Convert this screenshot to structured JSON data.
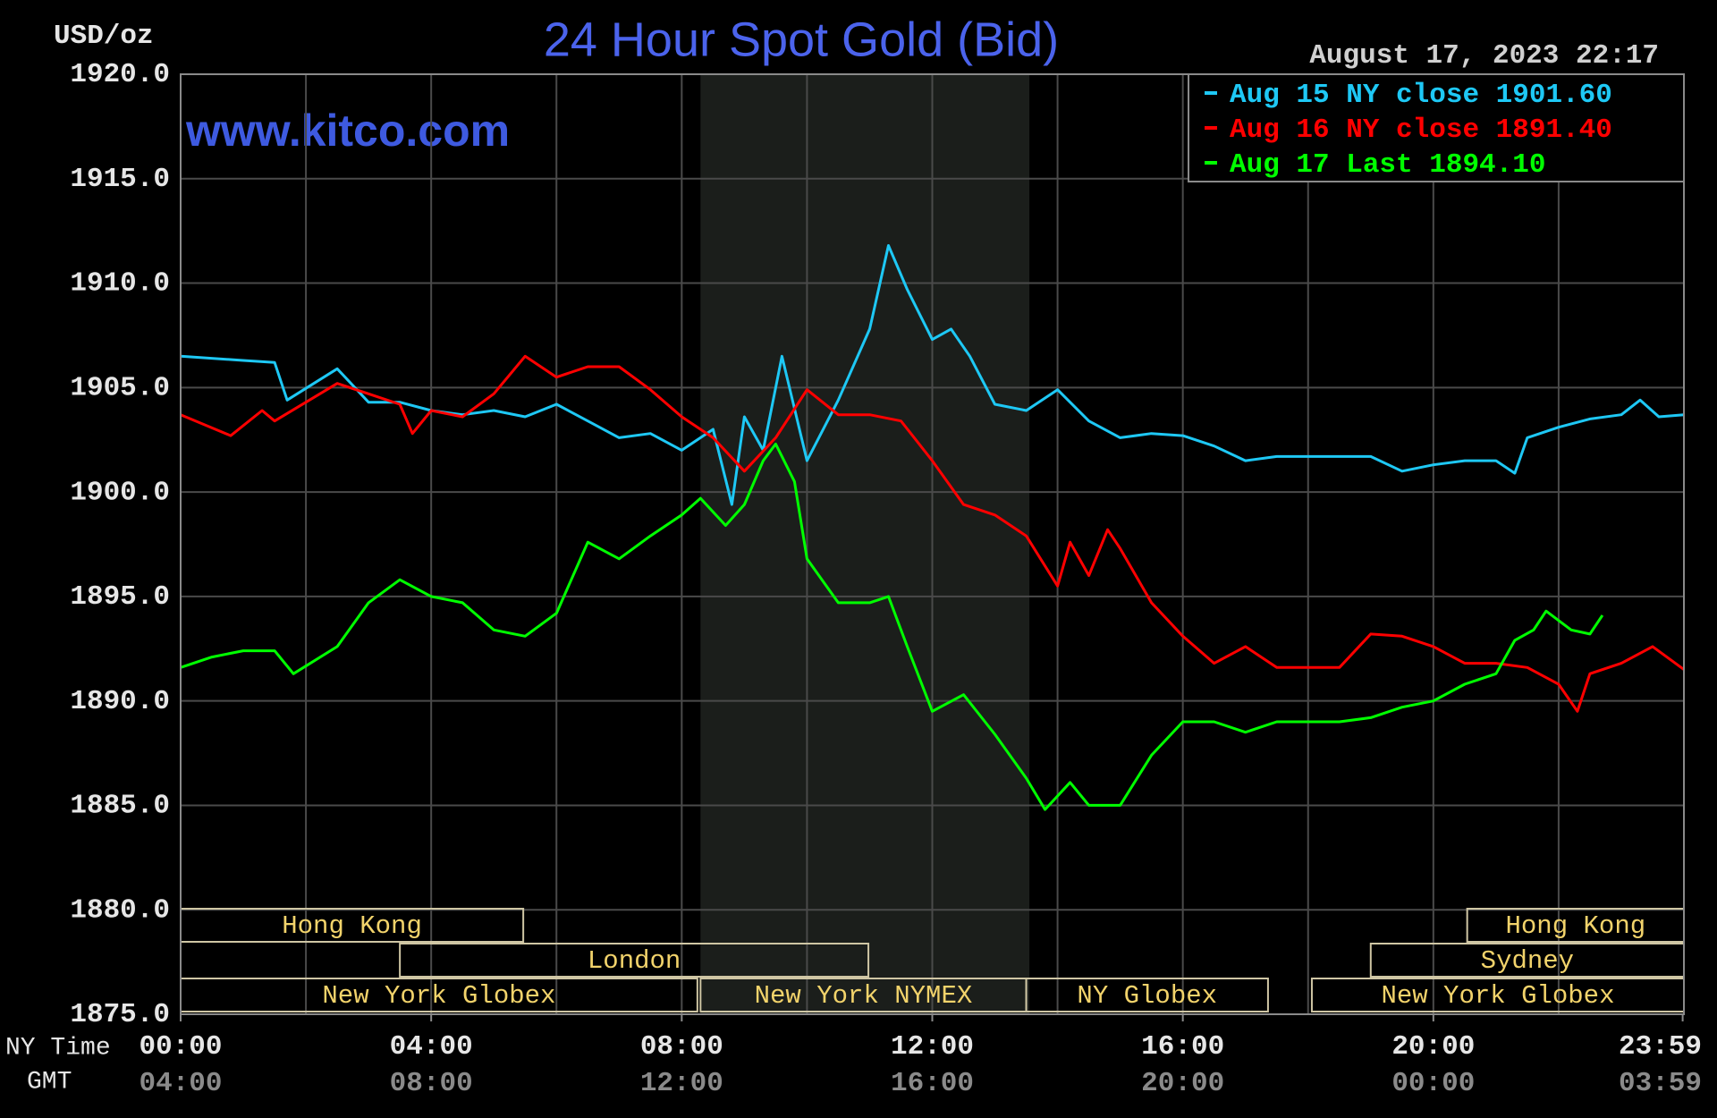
{
  "chart_data": {
    "type": "line",
    "title": "24 Hour Spot Gold (Bid)",
    "y_label": "USD/oz",
    "timestamp": "August 17, 2023 22:17",
    "watermark": "www.kitco.com",
    "x_label": "NY Time",
    "x2_label": "GMT",
    "xlim": [
      0,
      24
    ],
    "ylim": [
      1875,
      1920
    ],
    "yticks": [
      {
        "value": 1875,
        "label": "1875.0"
      },
      {
        "value": 1880,
        "label": "1880.0"
      },
      {
        "value": 1885,
        "label": "1885.0"
      },
      {
        "value": 1890,
        "label": "1890.0"
      },
      {
        "value": 1895,
        "label": "1895.0"
      },
      {
        "value": 1900,
        "label": "1900.0"
      },
      {
        "value": 1905,
        "label": "1905.0"
      },
      {
        "value": 1910,
        "label": "1910.0"
      },
      {
        "value": 1915,
        "label": "1915.0"
      },
      {
        "value": 1920,
        "label": "1920.0"
      }
    ],
    "xticks": [
      {
        "value": 0,
        "label": "00:00"
      },
      {
        "value": 4,
        "label": "04:00"
      },
      {
        "value": 8,
        "label": "08:00"
      },
      {
        "value": 12,
        "label": "12:00"
      },
      {
        "value": 16,
        "label": "16:00"
      },
      {
        "value": 20,
        "label": "20:00"
      },
      {
        "value": 23.98,
        "label": "23:59"
      }
    ],
    "x2ticks": [
      "04:00",
      "08:00",
      "12:00",
      "16:00",
      "20:00",
      "00:00",
      "03:59"
    ],
    "xgrid": [
      2,
      4,
      6,
      8,
      10,
      12,
      14,
      16,
      18,
      20,
      22
    ],
    "grid": true,
    "legend": "top-right",
    "highlight": {
      "start": 8.3,
      "end": 13.55,
      "color": "#1b1e1b"
    },
    "sessions": [
      {
        "label": "Hong Kong",
        "start": 0,
        "end": 5.47,
        "row": 0
      },
      {
        "label": "Hong Kong",
        "start": 20.54,
        "end": 24,
        "row": 0
      },
      {
        "label": "London",
        "start": 3.5,
        "end": 10.98,
        "row": 1
      },
      {
        "label": "Sydney",
        "start": 19,
        "end": 24,
        "row": 1
      },
      {
        "label": "New York Globex",
        "start": 0,
        "end": 8.25,
        "row": 2
      },
      {
        "label": "New York NYMEX",
        "start": 8.3,
        "end": 13.5,
        "row": 2
      },
      {
        "label": "NY Globex",
        "start": 13.5,
        "end": 17.36,
        "row": 2
      },
      {
        "label": "New York Globex",
        "start": 18.06,
        "end": 24,
        "row": 2
      }
    ],
    "series": [
      {
        "name": "Aug 15 NY close 1901.60",
        "color": "#1ec8f5",
        "x": [
          0,
          1,
          1.5,
          1.7,
          2.5,
          3,
          3.5,
          4,
          4.5,
          5,
          5.5,
          6,
          6.5,
          7,
          7.5,
          8,
          8.5,
          8.8,
          9,
          9.3,
          9.6,
          10,
          10.5,
          11,
          11.3,
          11.6,
          12,
          12.3,
          12.6,
          13,
          13.5,
          14,
          14.5,
          15,
          15.5,
          16,
          16.5,
          17,
          17.5,
          18,
          18.5,
          19,
          19.5,
          20,
          20.5,
          21,
          21.3,
          21.5,
          22,
          22.5,
          23,
          23.3,
          23.6,
          24
        ],
        "values": [
          1906.5,
          1906.3,
          1906.2,
          1904.4,
          1905.9,
          1904.3,
          1904.3,
          1903.9,
          1903.7,
          1903.9,
          1903.6,
          1904.2,
          1903.4,
          1902.6,
          1902.8,
          1902.0,
          1903.0,
          1899.4,
          1903.6,
          1902.0,
          1906.5,
          1901.5,
          1904.4,
          1907.8,
          1911.8,
          1909.7,
          1907.3,
          1907.8,
          1906.5,
          1904.2,
          1903.9,
          1904.9,
          1903.4,
          1902.6,
          1902.8,
          1902.7,
          1902.2,
          1901.5,
          1901.7,
          1901.7,
          1901.7,
          1901.7,
          1901.0,
          1901.3,
          1901.5,
          1901.5,
          1900.9,
          1902.6,
          1903.1,
          1903.5,
          1903.7,
          1904.4,
          1903.6,
          1903.7
        ]
      },
      {
        "name": "Aug 16 NY close 1891.40",
        "color": "#ff0000",
        "x": [
          0,
          0.8,
          1.3,
          1.5,
          2,
          2.5,
          3,
          3.5,
          3.7,
          4,
          4.5,
          5,
          5.5,
          6,
          6.5,
          7,
          7.5,
          8,
          8.5,
          9,
          9.5,
          10,
          10.5,
          11,
          11.5,
          12,
          12.5,
          13,
          13.5,
          14,
          14.2,
          14.5,
          14.8,
          15,
          15.5,
          16,
          16.5,
          17,
          17.5,
          18,
          18.5,
          19,
          19.5,
          20,
          20.5,
          21,
          21.5,
          22,
          22.3,
          22.5,
          23,
          23.5,
          24
        ],
        "values": [
          1903.7,
          1902.7,
          1903.9,
          1903.4,
          1904.3,
          1905.2,
          1904.7,
          1904.2,
          1902.8,
          1903.9,
          1903.6,
          1904.7,
          1906.5,
          1905.5,
          1906.0,
          1906.0,
          1904.9,
          1903.6,
          1902.6,
          1901.0,
          1902.6,
          1904.9,
          1903.7,
          1903.7,
          1903.4,
          1901.5,
          1899.4,
          1898.9,
          1897.9,
          1895.5,
          1897.6,
          1896.0,
          1898.2,
          1897.3,
          1894.7,
          1893.1,
          1891.8,
          1892.6,
          1891.6,
          1891.6,
          1891.6,
          1893.2,
          1893.1,
          1892.6,
          1891.8,
          1891.8,
          1891.6,
          1890.8,
          1889.5,
          1891.3,
          1891.8,
          1892.6,
          1891.5
        ]
      },
      {
        "name": "Aug 17 Last 1894.10",
        "color": "#00ff00",
        "x": [
          0,
          0.5,
          1,
          1.5,
          1.8,
          2.5,
          3,
          3.5,
          4,
          4.5,
          5,
          5.5,
          6,
          6.5,
          7,
          7.5,
          8,
          8.3,
          8.7,
          9,
          9.3,
          9.5,
          9.8,
          10,
          10.5,
          11,
          11.3,
          11.6,
          12,
          12.5,
          13,
          13.5,
          13.8,
          14.2,
          14.5,
          15,
          15.5,
          16,
          16.5,
          17,
          17.5,
          18.5,
          19,
          19.5,
          20,
          20.5,
          21,
          21.3,
          21.6,
          21.8,
          22.2,
          22.5,
          22.7
        ],
        "values": [
          1891.6,
          1892.1,
          1892.4,
          1892.4,
          1891.3,
          1892.6,
          1894.7,
          1895.8,
          1895.0,
          1894.7,
          1893.4,
          1893.1,
          1894.2,
          1897.6,
          1896.8,
          1897.9,
          1898.9,
          1899.7,
          1898.4,
          1899.4,
          1901.5,
          1902.3,
          1900.5,
          1896.8,
          1894.7,
          1894.7,
          1895.0,
          1892.6,
          1889.5,
          1890.3,
          1888.4,
          1886.3,
          1884.8,
          1886.1,
          1885.0,
          1885.0,
          1887.4,
          1889.0,
          1889.0,
          1888.5,
          1889.0,
          1889.0,
          1889.2,
          1889.7,
          1890.0,
          1890.8,
          1891.3,
          1892.9,
          1893.4,
          1894.3,
          1893.4,
          1893.2,
          1894.1
        ]
      }
    ]
  }
}
